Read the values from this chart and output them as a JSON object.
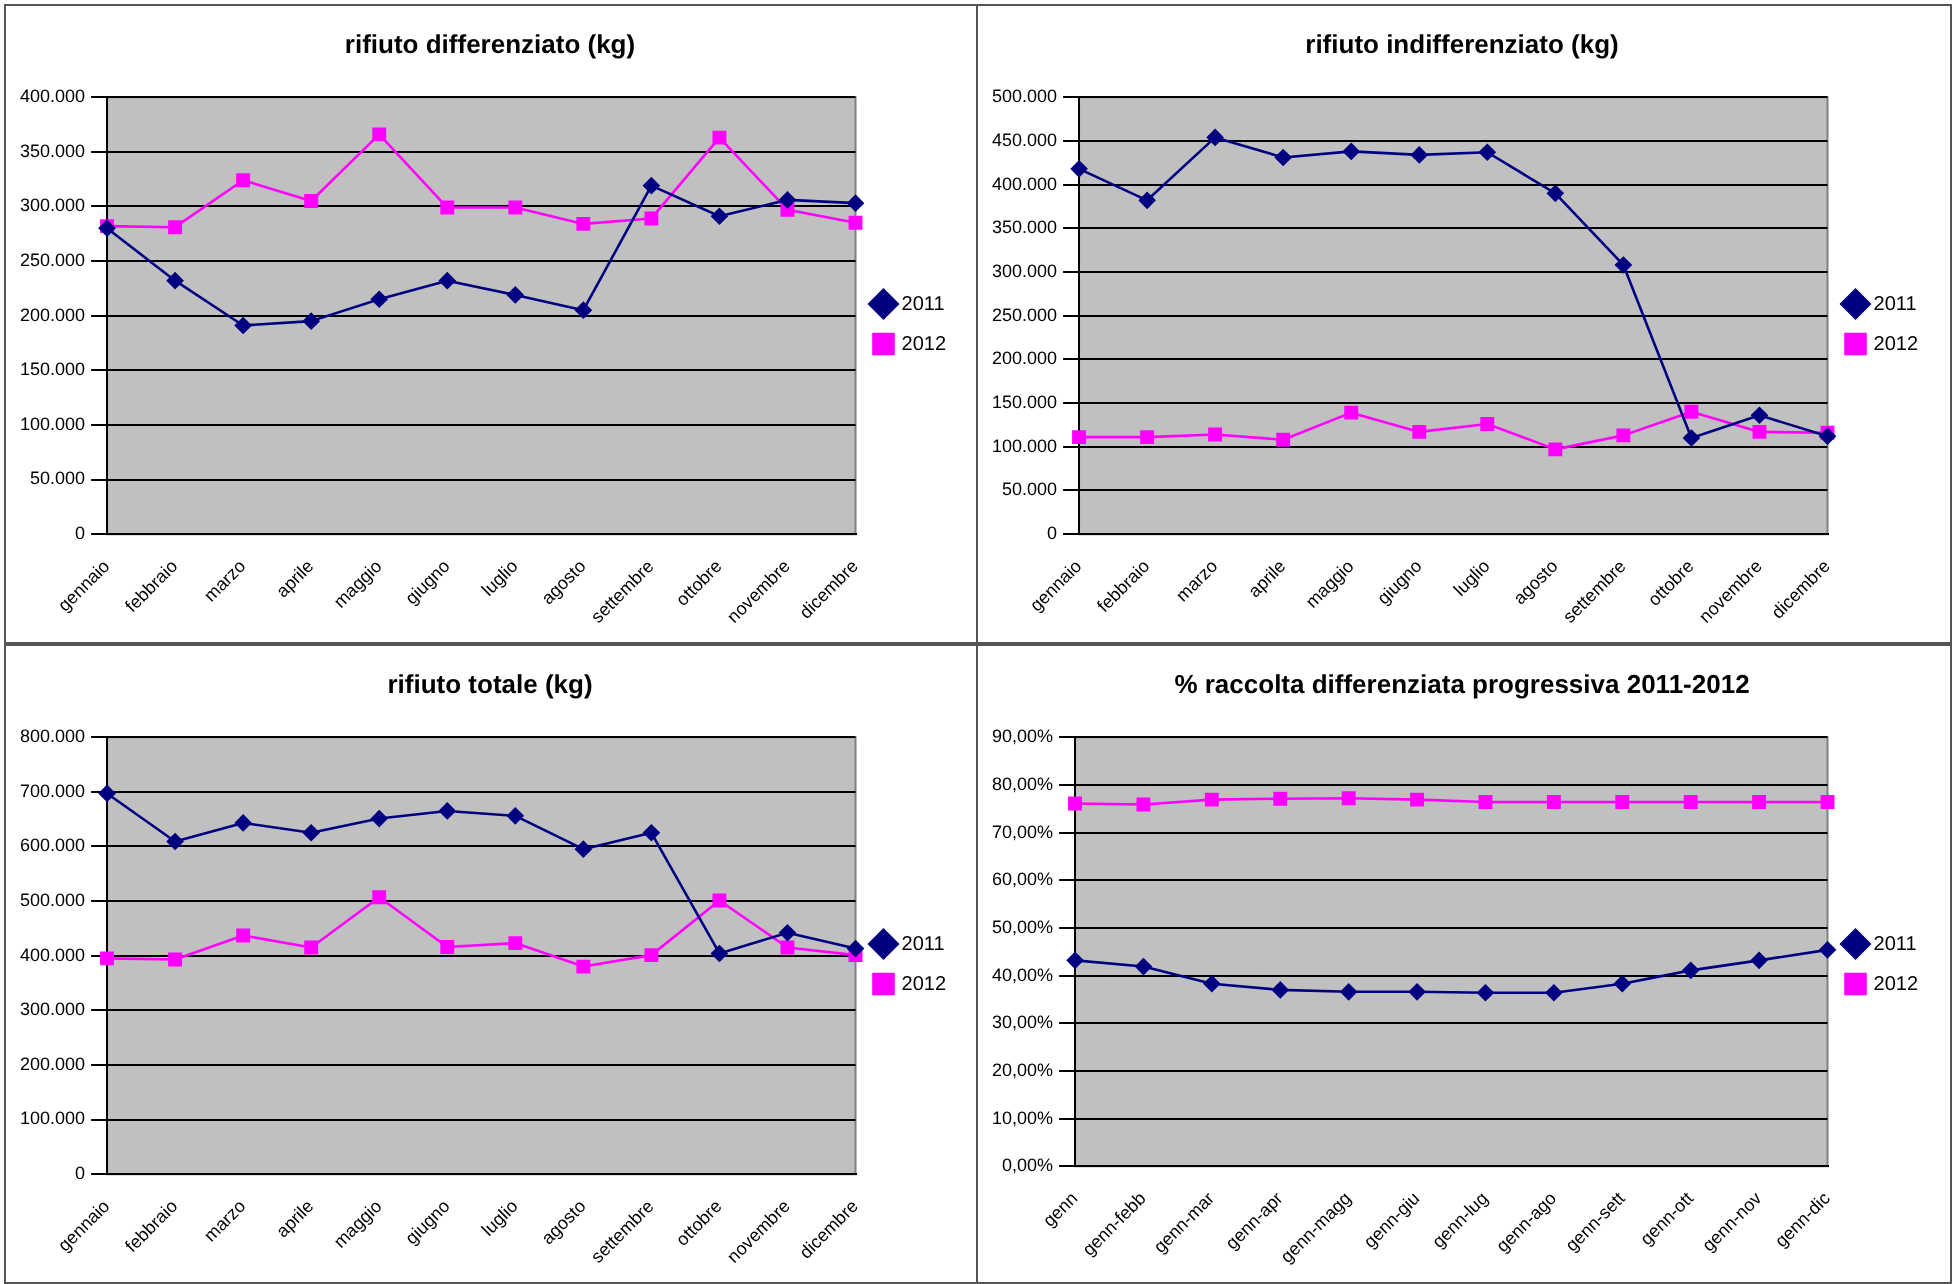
{
  "chart_data": [
    {
      "type": "line",
      "title": "rifiuto differenziato (kg)",
      "categories": [
        "gennaio",
        "febbraio",
        "marzo",
        "aprile",
        "maggio",
        "giugno",
        "luglio",
        "agosto",
        "settembre",
        "ottobre",
        "novembre",
        "dicembre"
      ],
      "series": [
        {
          "name": "2011",
          "color": "#000080",
          "marker": "diamond",
          "values": [
            280000,
            232000,
            191000,
            195000,
            215000,
            232000,
            219000,
            205000,
            319000,
            291000,
            306000,
            303000
          ]
        },
        {
          "name": "2012",
          "color": "#ff00ff",
          "marker": "square",
          "values": [
            282000,
            281000,
            324000,
            305000,
            366000,
            299000,
            299000,
            284000,
            289000,
            363000,
            297000,
            285000
          ]
        }
      ],
      "ylim": [
        0,
        400000
      ],
      "yticks": [
        {
          "value": 0,
          "label": "0"
        },
        {
          "value": 50000,
          "label": "50.000"
        },
        {
          "value": 100000,
          "label": "100.000"
        },
        {
          "value": 150000,
          "label": "150.000"
        },
        {
          "value": 200000,
          "label": "200.000"
        },
        {
          "value": 250000,
          "label": "250.000"
        },
        {
          "value": 300000,
          "label": "300.000"
        },
        {
          "value": 350000,
          "label": "350.000"
        },
        {
          "value": 400000,
          "label": "400.000"
        }
      ],
      "grid": "y",
      "legend": "right",
      "line_style": "solid"
    },
    {
      "type": "line",
      "title": "rifiuto indifferenziato (kg)",
      "categories": [
        "gennaio",
        "febbraio",
        "marzo",
        "aprile",
        "maggio",
        "giugno",
        "luglio",
        "agosto",
        "settembre",
        "ottobre",
        "novembre",
        "dicembre"
      ],
      "series": [
        {
          "name": "2011",
          "color": "#000080",
          "marker": "diamond",
          "values": [
            418000,
            382000,
            454000,
            431000,
            438000,
            434000,
            437000,
            390000,
            308000,
            110000,
            136000,
            112000
          ]
        },
        {
          "name": "2012",
          "color": "#ff00ff",
          "marker": "square",
          "values": [
            111000,
            111000,
            114000,
            108000,
            139000,
            117000,
            126000,
            97000,
            113000,
            140000,
            117000,
            116000
          ]
        }
      ],
      "ylim": [
        0,
        500000
      ],
      "yticks": [
        {
          "value": 0,
          "label": "0"
        },
        {
          "value": 50000,
          "label": "50.000"
        },
        {
          "value": 100000,
          "label": "100.000"
        },
        {
          "value": 150000,
          "label": "150.000"
        },
        {
          "value": 200000,
          "label": "200.000"
        },
        {
          "value": 250000,
          "label": "250.000"
        },
        {
          "value": 300000,
          "label": "300.000"
        },
        {
          "value": 350000,
          "label": "350.000"
        },
        {
          "value": 400000,
          "label": "400.000"
        },
        {
          "value": 450000,
          "label": "450.000"
        },
        {
          "value": 500000,
          "label": "500.000"
        }
      ],
      "grid": "y",
      "legend": "right",
      "line_style": "solid"
    },
    {
      "type": "line",
      "title": "rifiuto totale (kg)",
      "categories": [
        "gennaio",
        "febbraio",
        "marzo",
        "aprile",
        "maggio",
        "giugno",
        "luglio",
        "agosto",
        "settembre",
        "ottobre",
        "novembre",
        "dicembre"
      ],
      "series": [
        {
          "name": "2011",
          "color": "#000080",
          "marker": "diamond",
          "values": [
            697000,
            609000,
            643000,
            625000,
            651000,
            665000,
            656000,
            595000,
            625000,
            404000,
            442000,
            413000
          ]
        },
        {
          "name": "2012",
          "color": "#ff00ff",
          "marker": "square",
          "values": [
            395000,
            393000,
            437000,
            415000,
            507000,
            416000,
            423000,
            380000,
            401000,
            501000,
            415000,
            401000
          ]
        }
      ],
      "ylim": [
        0,
        800000
      ],
      "yticks": [
        {
          "value": 0,
          "label": "0"
        },
        {
          "value": 100000,
          "label": "100.000"
        },
        {
          "value": 200000,
          "label": "200.000"
        },
        {
          "value": 300000,
          "label": "300.000"
        },
        {
          "value": 400000,
          "label": "400.000"
        },
        {
          "value": 500000,
          "label": "500.000"
        },
        {
          "value": 600000,
          "label": "600.000"
        },
        {
          "value": 700000,
          "label": "700.000"
        },
        {
          "value": 800000,
          "label": "800.000"
        }
      ],
      "grid": "y",
      "legend": "right",
      "line_style": "solid"
    },
    {
      "type": "line",
      "title": "% raccolta differenziata progressiva 2011-2012",
      "categories": [
        "genn",
        "genn-febb",
        "genn-mar",
        "genn-apr",
        "genn-magg",
        "genn-giu",
        "genn-lug",
        "genn-ago",
        "genn-sett",
        "genn-ott",
        "genn-nov",
        "genn-dic"
      ],
      "series": [
        {
          "name": "2011",
          "color": "#000080",
          "marker": "diamond",
          "values": [
            43.2,
            41.9,
            38.3,
            37.0,
            36.6,
            36.6,
            36.4,
            36.4,
            38.3,
            41.1,
            43.2,
            45.4
          ]
        },
        {
          "name": "2012",
          "color": "#ff00ff",
          "marker": "square",
          "values": [
            76.1,
            75.9,
            76.9,
            77.1,
            77.2,
            76.9,
            76.4,
            76.4,
            76.4,
            76.4,
            76.4,
            76.4
          ]
        }
      ],
      "ylim": [
        0,
        90
      ],
      "yticks": [
        {
          "value": 0,
          "label": "0,00%"
        },
        {
          "value": 10,
          "label": "10,00%"
        },
        {
          "value": 20,
          "label": "20,00%"
        },
        {
          "value": 30,
          "label": "30,00%"
        },
        {
          "value": 40,
          "label": "40,00%"
        },
        {
          "value": 50,
          "label": "50,00%"
        },
        {
          "value": 60,
          "label": "60,00%"
        },
        {
          "value": 70,
          "label": "70,00%"
        },
        {
          "value": 80,
          "label": "80,00%"
        },
        {
          "value": 90,
          "label": "90,00%"
        }
      ],
      "grid": "y",
      "legend": "right",
      "line_style": "solid"
    }
  ]
}
